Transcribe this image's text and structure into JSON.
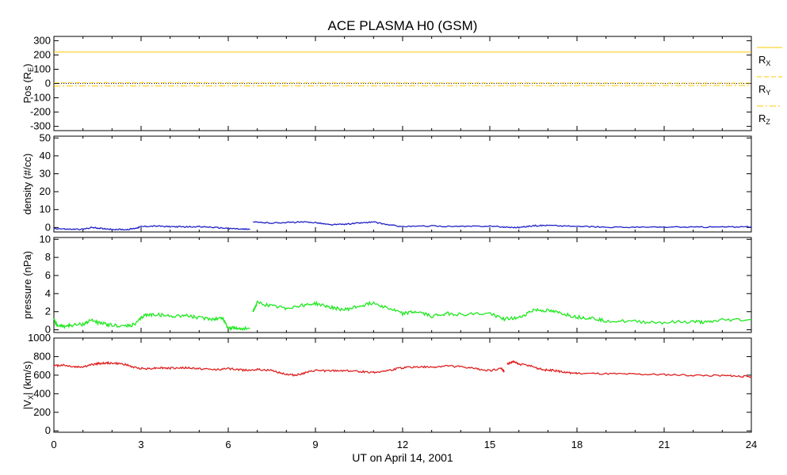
{
  "chart_data": {
    "title": "ACE PLASMA H0 (GSM)",
    "xlabel": "UT on April 14, 2001",
    "x_range": [
      0,
      24
    ],
    "x_ticks": [
      "0",
      "3",
      "6",
      "9",
      "12",
      "15",
      "18",
      "21",
      "24"
    ],
    "grid": false,
    "panels": [
      {
        "type": "line",
        "ylabel": "Pos (R",
        "ylabel_sub": "E",
        "ylabel_tail": ")",
        "ylim": [
          -330,
          330
        ],
        "y_ticks": [
          300,
          200,
          100,
          0,
          -100,
          -200,
          -300
        ],
        "legend_placement": "right",
        "series": [
          {
            "name": "R",
            "sub": "X",
            "color": "#ffc800",
            "style": "solid",
            "x": [
              0,
              24
            ],
            "y": [
              220,
              220
            ]
          },
          {
            "name": "R",
            "sub": "Y",
            "color": "#ffc800",
            "style": "dashed",
            "x": [
              0,
              24
            ],
            "y": [
              5,
              3
            ]
          },
          {
            "name": "R",
            "sub": "Z",
            "color": "#ffc800",
            "style": "dashdot",
            "x": [
              0,
              24
            ],
            "y": [
              -18,
              -14
            ]
          }
        ],
        "zero_line": {
          "color": "#000080",
          "y": 0,
          "style": "dotted"
        }
      },
      {
        "type": "line",
        "ylabel": "density (#/cc)",
        "ylim": [
          -2.5,
          51
        ],
        "y_ticks": [
          50,
          40,
          30,
          20,
          10,
          0
        ],
        "series": [
          {
            "color": "#2020c8",
            "x": [
              0,
              0.5,
              1,
              1.3,
              1.6,
              2,
              2.5,
              2.8,
              3,
              3.5,
              4,
              4.5,
              5,
              5.5,
              6,
              6.5,
              6.75
            ],
            "y": [
              -0.5,
              -1,
              -1,
              0,
              -0.5,
              -1,
              -1.2,
              -0.5,
              0.5,
              0.8,
              0.5,
              0.3,
              0.5,
              0,
              -0.5,
              -1,
              -1
            ]
          },
          {
            "color": "#2020c8",
            "x": [
              6.85,
              7.5,
              8,
              8.5,
              9,
              9.5,
              10,
              10.5,
              11,
              11.5,
              12,
              13,
              14,
              15,
              15.5,
              16,
              16.5,
              17,
              18,
              19,
              20,
              21,
              22,
              23,
              24
            ],
            "y": [
              3,
              2.5,
              2.8,
              3,
              2.8,
              1.5,
              1.8,
              2.5,
              3,
              1.5,
              0.5,
              0.8,
              0.5,
              0.8,
              0.2,
              0,
              1,
              1.2,
              0.6,
              0.2,
              0.1,
              0.2,
              0.2,
              0.3,
              0.3
            ]
          }
        ]
      },
      {
        "type": "line",
        "ylabel": "pressure (nPa)",
        "ylim": [
          -0.3,
          10.2
        ],
        "y_ticks": [
          10,
          8,
          6,
          4,
          2,
          0
        ],
        "series": [
          {
            "color": "#20e820",
            "x": [
              0,
              0.1,
              0.3,
              0.6,
              1,
              1.3,
              1.6,
              2,
              2.5,
              2.8,
              3.1,
              3.5,
              4,
              4.5,
              5,
              5.5,
              5.8,
              6,
              6.3,
              6.75
            ],
            "y": [
              1.2,
              0.5,
              0.4,
              0.5,
              0.6,
              1.1,
              0.7,
              0.5,
              0.4,
              0.6,
              1.6,
              1.7,
              1.5,
              1.6,
              1.3,
              1.2,
              1.3,
              0.2,
              0.15,
              0.15
            ]
          },
          {
            "color": "#20e820",
            "x": [
              6.85,
              7,
              7.5,
              8,
              8.5,
              9,
              9.5,
              10,
              10.5,
              11,
              11.5,
              12,
              12.5,
              13,
              13.5,
              14,
              15,
              15.5,
              16,
              16.5,
              17,
              17.5,
              18,
              18.5,
              19,
              20,
              21,
              22,
              22.5,
              23,
              24
            ],
            "y": [
              2,
              3,
              2.6,
              2.4,
              2.7,
              2.9,
              2.5,
              2.2,
              2.6,
              3,
              2.4,
              1.8,
              2,
              1.5,
              1.8,
              1.7,
              1.8,
              1.2,
              1.3,
              2.2,
              2.1,
              1.8,
              1.4,
              1.3,
              1.0,
              0.9,
              0.8,
              0.9,
              0.8,
              1.1,
              1.1
            ]
          }
        ]
      },
      {
        "type": "line",
        "ylabel": "|V",
        "ylabel_sub": "X",
        "ylabel_tail": "| (km/s)",
        "ylim": [
          -15,
          1000
        ],
        "y_ticks": [
          1000,
          800,
          600,
          400,
          200,
          0
        ],
        "series": [
          {
            "color": "#e02020",
            "x": [
              0,
              0.3,
              0.7,
              1,
              1.4,
              1.7,
              2,
              2.4,
              2.8,
              3.2,
              3.6,
              4,
              4.5,
              5,
              5.5,
              6,
              6.5,
              7,
              7.5,
              8,
              8.3,
              8.6,
              9,
              9.5,
              10,
              10.5,
              11,
              11.5,
              12,
              12.5,
              13,
              13.5,
              14,
              14.5,
              15,
              15.4,
              15.5
            ],
            "y": [
              700,
              710,
              690,
              690,
              720,
              730,
              730,
              720,
              680,
              670,
              680,
              675,
              680,
              670,
              660,
              670,
              655,
              660,
              650,
              610,
              600,
              620,
              650,
              645,
              650,
              640,
              630,
              650,
              680,
              690,
              685,
              700,
              690,
              670,
              650,
              670,
              640
            ]
          },
          {
            "color": "#e02020",
            "x": [
              15.6,
              15.8,
              16,
              16.4,
              16.8,
              17.2,
              17.6,
              18,
              19,
              20,
              21,
              22,
              23,
              23.5,
              24
            ],
            "y": [
              720,
              745,
              720,
              700,
              660,
              650,
              630,
              620,
              615,
              610,
              605,
              600,
              595,
              590,
              585
            ]
          }
        ]
      }
    ]
  }
}
